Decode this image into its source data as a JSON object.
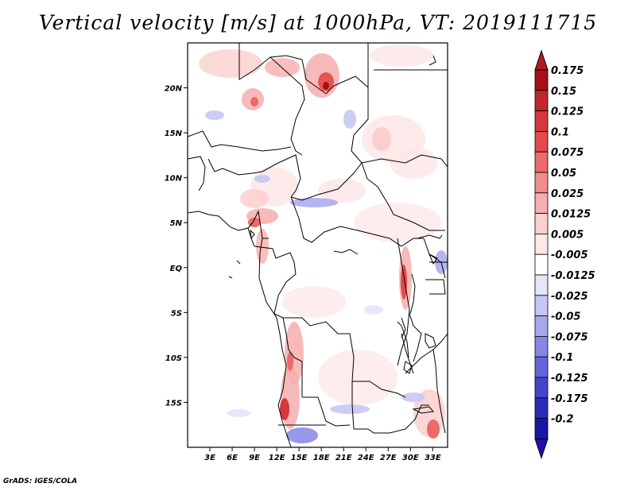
{
  "title": "Vertical velocity [m/s] at 1000hPa, VT: 2019111715",
  "footer": "GrADS: IGES/COLA",
  "map": {
    "lon_range": [
      0,
      35
    ],
    "lat_range": [
      -20,
      25
    ],
    "lat_ticks": [
      {
        "value": 20,
        "label": "20N"
      },
      {
        "value": 15,
        "label": "15N"
      },
      {
        "value": 10,
        "label": "10N"
      },
      {
        "value": 5,
        "label": "5N"
      },
      {
        "value": 0,
        "label": "EQ"
      },
      {
        "value": -5,
        "label": "5S"
      },
      {
        "value": -10,
        "label": "10S"
      },
      {
        "value": -15,
        "label": "15S"
      }
    ],
    "lon_ticks": [
      {
        "value": 3,
        "label": "3E"
      },
      {
        "value": 6,
        "label": "6E"
      },
      {
        "value": 9,
        "label": "9E"
      },
      {
        "value": 12,
        "label": "12E"
      },
      {
        "value": 15,
        "label": "15E"
      },
      {
        "value": 18,
        "label": "18E"
      },
      {
        "value": 21,
        "label": "21E"
      },
      {
        "value": 24,
        "label": "24E"
      },
      {
        "value": 27,
        "label": "27E"
      },
      {
        "value": 30,
        "label": "30E"
      },
      {
        "value": 33,
        "label": "33E"
      }
    ]
  },
  "colorbar": {
    "levels": [
      {
        "label": "0.175",
        "color": "#a50f15"
      },
      {
        "label": "0.15",
        "color": "#c1272d"
      },
      {
        "label": "0.125",
        "color": "#d7373d"
      },
      {
        "label": "0.1",
        "color": "#e34a4a"
      },
      {
        "label": "0.075",
        "color": "#ec6a6a"
      },
      {
        "label": "0.05",
        "color": "#f18c8c"
      },
      {
        "label": "0.025",
        "color": "#f6aeae"
      },
      {
        "label": "0.0125",
        "color": "#fbcfcf"
      },
      {
        "label": "0.005",
        "color": "#fde8e8"
      },
      {
        "label": "-0.005",
        "color": "#ffffff"
      },
      {
        "label": "-0.0125",
        "color": "#e4e4fb"
      },
      {
        "label": "-0.025",
        "color": "#c6c6f5"
      },
      {
        "label": "-0.05",
        "color": "#a7a7ee"
      },
      {
        "label": "-0.075",
        "color": "#8686e4"
      },
      {
        "label": "-0.1",
        "color": "#6565d9"
      },
      {
        "label": "-0.125",
        "color": "#4444cc"
      },
      {
        "label": "-0.175",
        "color": "#2a2abb"
      },
      {
        "label": "-0.2",
        "color": "#1818a8"
      }
    ],
    "top_arrow_color": "#b01c22",
    "bottom_arrow_color": "#2010a8"
  }
}
